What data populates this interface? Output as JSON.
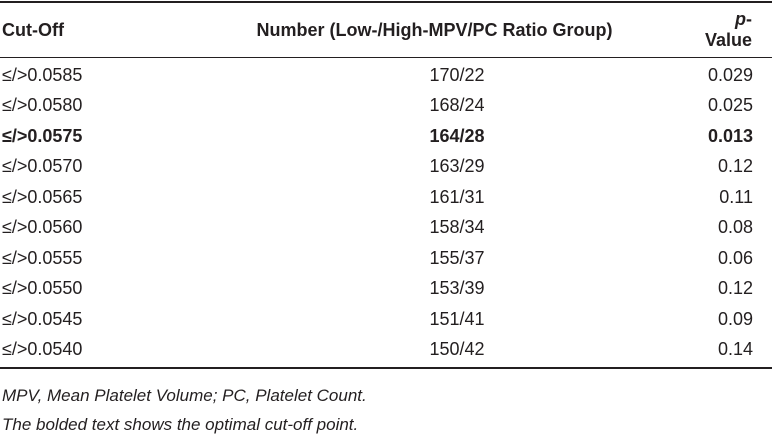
{
  "table": {
    "headers": {
      "cutoff": "Cut-Off",
      "number": "Number (Low-/High-MPV/PC Ratio Group)",
      "pvalue_prefix": "p",
      "pvalue_suffix": "-Value"
    },
    "rows": [
      {
        "cutoff": "≤/>0.0585",
        "number": "170/22",
        "pvalue": "0.029",
        "bold": false
      },
      {
        "cutoff": "≤/>0.0580",
        "number": "168/24",
        "pvalue": "0.025",
        "bold": false
      },
      {
        "cutoff": "≤/>0.0575",
        "number": "164/28",
        "pvalue": "0.013",
        "bold": true
      },
      {
        "cutoff": "≤/>0.0570",
        "number": "163/29",
        "pvalue": "0.12",
        "bold": false
      },
      {
        "cutoff": "≤/>0.0565",
        "number": "161/31",
        "pvalue": "0.11",
        "bold": false
      },
      {
        "cutoff": "≤/>0.0560",
        "number": "158/34",
        "pvalue": "0.08",
        "bold": false
      },
      {
        "cutoff": "≤/>0.0555",
        "number": "155/37",
        "pvalue": "0.06",
        "bold": false
      },
      {
        "cutoff": "≤/>0.0550",
        "number": "153/39",
        "pvalue": "0.12",
        "bold": false
      },
      {
        "cutoff": "≤/>0.0545",
        "number": "151/41",
        "pvalue": "0.09",
        "bold": false
      },
      {
        "cutoff": "≤/>0.0540",
        "number": "150/42",
        "pvalue": "0.14",
        "bold": false
      }
    ]
  },
  "notes": {
    "abbreviations": "MPV, Mean Platelet Volume; PC, Platelet Count.",
    "bold_explanation": "The bolded text shows the optimal cut-off point."
  }
}
